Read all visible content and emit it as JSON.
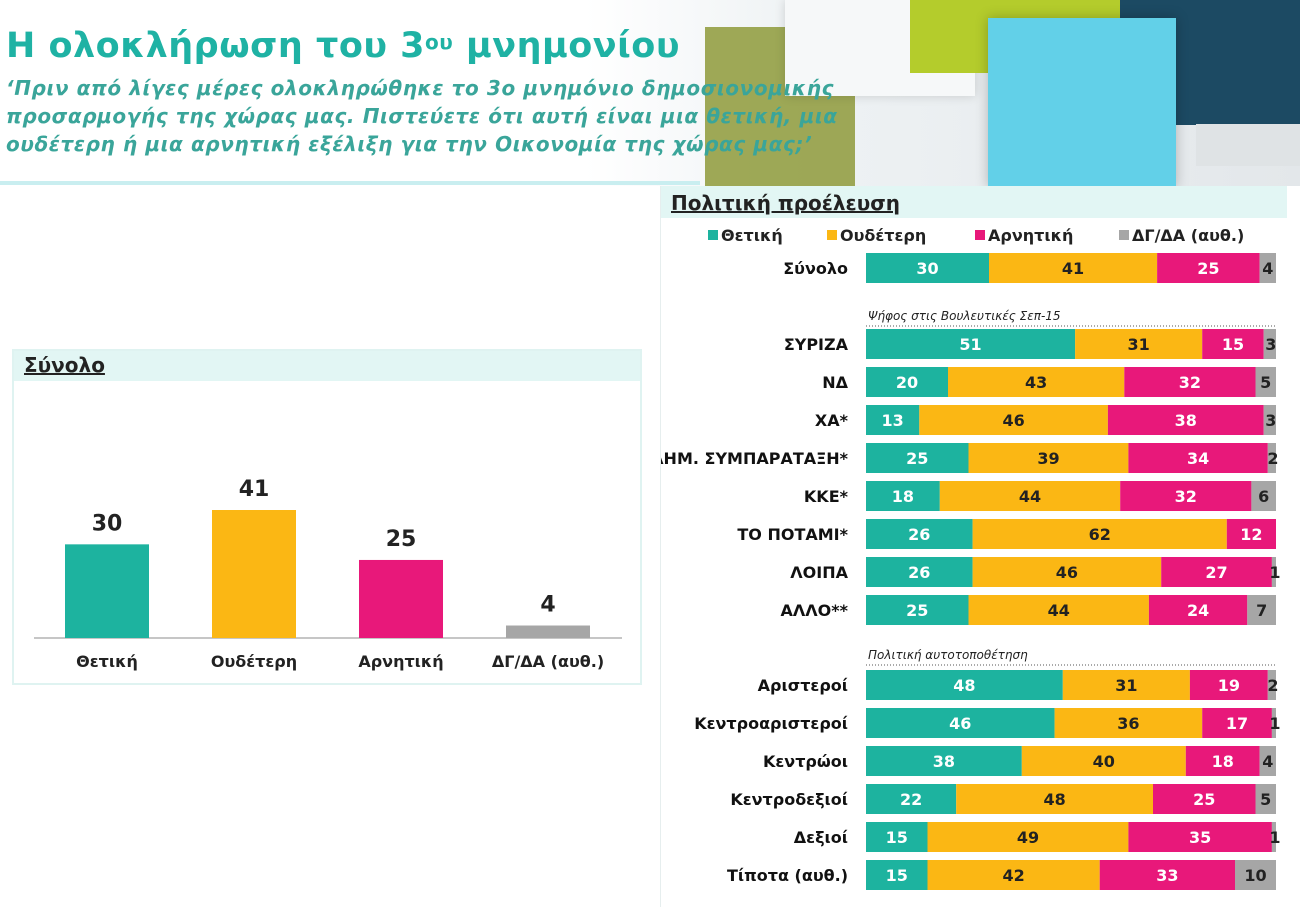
{
  "header": {
    "title_main": "Η ολοκλήρωση του 3",
    "title_sup": "ου",
    "title_end": " μνημονίου",
    "question": "‘Πριν από λίγες μέρες ολοκληρώθηκε το 3ο μνημόνιο δημοσιονομικής προσαρμογής της χώρας μας. Πιστεύετε ότι αυτή είναι μια θετική, μια ουδέτερη ή μια αρνητική εξέλιξη για την Οικονομία της χώρας μας;’"
  },
  "colors": {
    "positive": "#1db39f",
    "neutral": "#fbb714",
    "negative": "#e8187a",
    "dkna": "#a6a6a6",
    "title": "#1fb2a4"
  },
  "chart_data": [
    {
      "type": "bar",
      "title": "Σύνολο",
      "categories": [
        "Θετική",
        "Ουδέτερη",
        "Αρνητική",
        "ΔΓ/ΔΑ (αυθ.)"
      ],
      "values": [
        30,
        41,
        25,
        4
      ]
    },
    {
      "type": "bar",
      "orientation": "horizontal",
      "stacked": true,
      "title": "Πολιτική προέλευση",
      "legend": "top",
      "series_names": [
        "Θετική",
        "Ουδέτερη",
        "Αρνητική",
        "ΔΓ/ΔΑ (αυθ.)"
      ],
      "group_labels": [
        "Ψήφος στις Βουλευτικές Σεπ-15",
        "Πολιτική αυτοτοποθέτηση"
      ],
      "rows": [
        {
          "label": "Σύνολο",
          "values": [
            30,
            41,
            25,
            4
          ]
        },
        {
          "label": "ΣΥΡΙΖΑ",
          "values": [
            51,
            31,
            15,
            3
          ]
        },
        {
          "label": "ΝΔ",
          "values": [
            20,
            43,
            32,
            5
          ]
        },
        {
          "label": "ΧΑ*",
          "values": [
            13,
            46,
            38,
            3
          ]
        },
        {
          "label": "ΔΗΜ. ΣΥΜΠΑΡΑΤΑΞΗ*",
          "values": [
            25,
            39,
            34,
            2
          ]
        },
        {
          "label": "ΚΚΕ*",
          "values": [
            18,
            44,
            32,
            6
          ]
        },
        {
          "label": "ΤΟ ΠΟΤΑΜΙ*",
          "values": [
            26,
            62,
            12,
            0
          ]
        },
        {
          "label": "ΛΟΙΠΑ",
          "values": [
            26,
            46,
            27,
            1
          ]
        },
        {
          "label": "ΑΛΛΟ**",
          "values": [
            25,
            44,
            24,
            7
          ]
        },
        {
          "label": "Αριστεροί",
          "values": [
            48,
            31,
            19,
            2
          ]
        },
        {
          "label": "Κεντροαριστεροί",
          "values": [
            46,
            36,
            17,
            1
          ]
        },
        {
          "label": "Κεντρώοι",
          "values": [
            38,
            40,
            18,
            4
          ]
        },
        {
          "label": "Κεντροδεξιοί",
          "values": [
            22,
            48,
            25,
            5
          ]
        },
        {
          "label": "Δεξιοί",
          "values": [
            15,
            49,
            35,
            1
          ]
        },
        {
          "label": "Τίποτα (αυθ.)",
          "values": [
            15,
            42,
            33,
            10
          ]
        }
      ]
    }
  ]
}
